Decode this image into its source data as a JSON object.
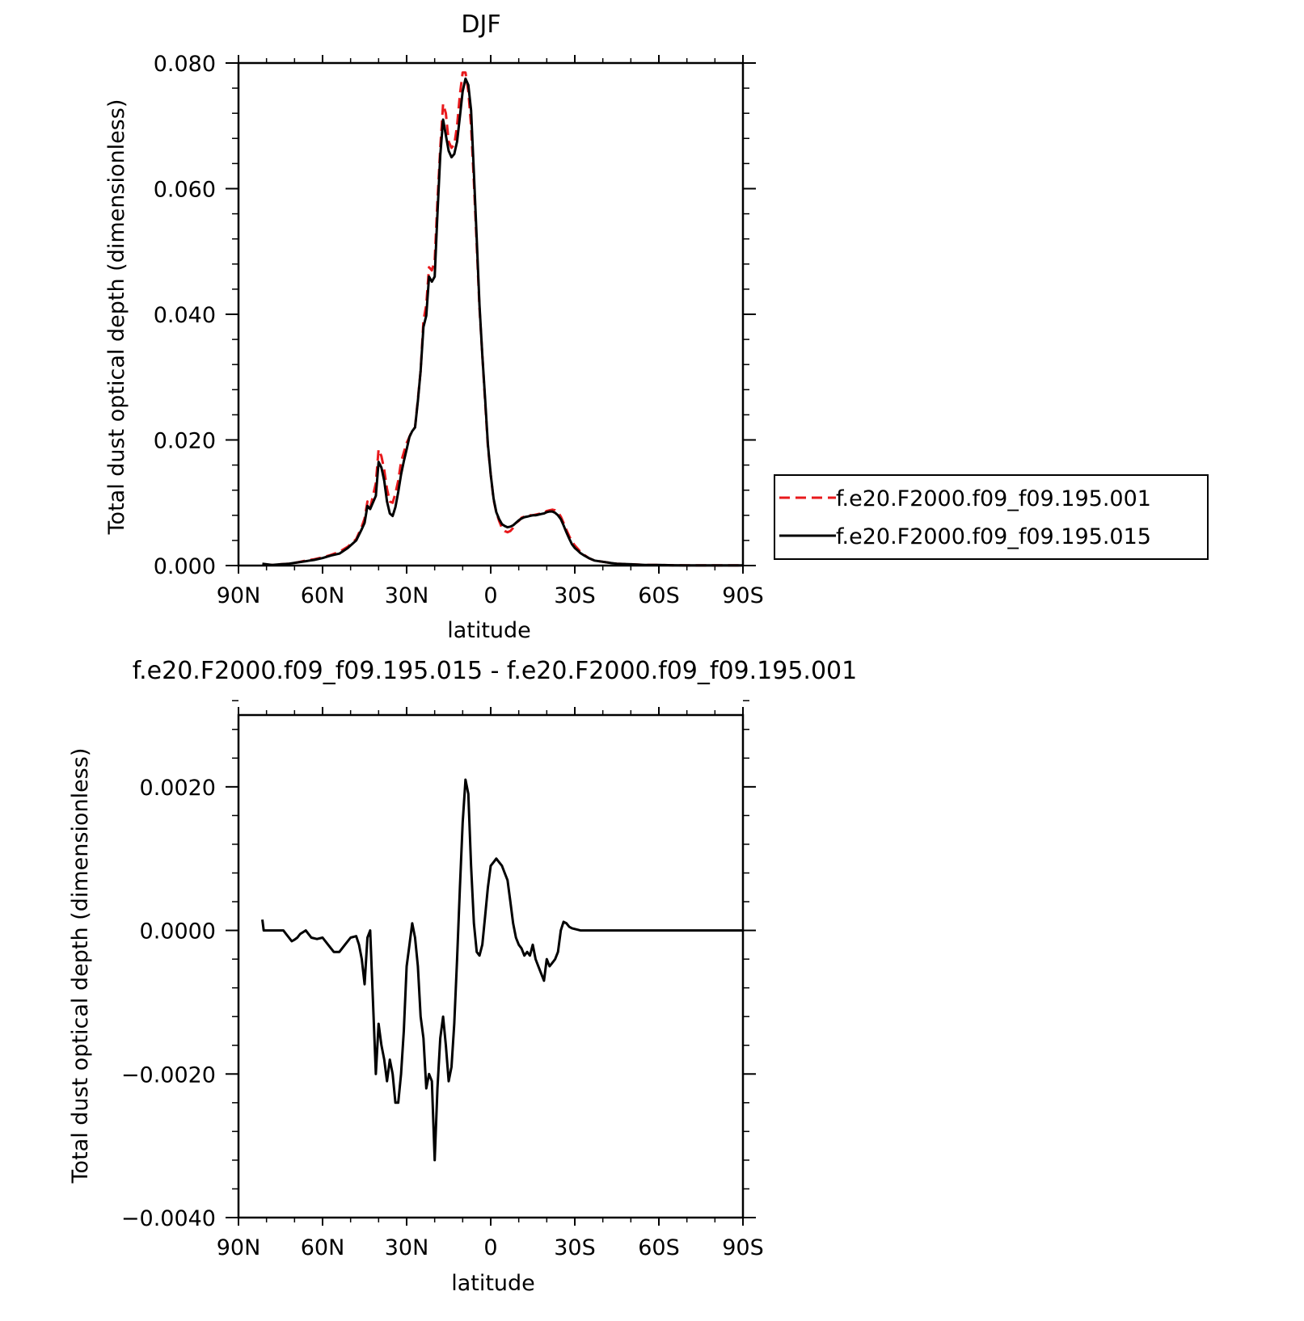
{
  "colors": {
    "series_control": "#e8191c",
    "series_experiment": "#000000",
    "axis": "#000000",
    "background": "#ffffff"
  },
  "chart_data": [
    {
      "type": "line",
      "title": "DJF",
      "xlabel": "latitude",
      "ylabel": "Total dust optical depth (dimensionless)",
      "xlim": [
        -90,
        90
      ],
      "ylim": [
        0,
        0.08
      ],
      "x_direction": "north-to-south",
      "xticks": [
        -90,
        -60,
        -30,
        0,
        30,
        60,
        90
      ],
      "xtick_labels": [
        "90N",
        "60N",
        "30N",
        "0",
        "30S",
        "60S",
        "90S"
      ],
      "yticks": [
        0,
        0.02,
        0.04,
        0.06,
        0.08
      ],
      "ytick_labels": [
        "0.000",
        "0.020",
        "0.040",
        "0.060",
        "0.080"
      ],
      "grid": false,
      "legend_position": "right",
      "series": [
        {
          "name": "f.e20.F2000.f09_f09.195.001",
          "style": "dashed",
          "color": "#e8191c",
          "x": [
            -81.5,
            -78,
            -75,
            -72,
            -69,
            -66,
            -63,
            -60,
            -57,
            -54,
            -51,
            -48,
            -46,
            -45,
            -44,
            -43,
            -41,
            -40,
            -39,
            -38,
            -37,
            -36,
            -35,
            -34,
            -33,
            -32,
            -31,
            -30,
            -29,
            -28,
            -27,
            -26,
            -25,
            -24,
            -23,
            -22,
            -21,
            -20,
            -19,
            -18,
            -17,
            -16,
            -15,
            -14,
            -13,
            -12,
            -11,
            -10,
            -9,
            -8,
            -7,
            -6,
            -5,
            -4,
            -3,
            -2,
            -1,
            0,
            1,
            2,
            3,
            4,
            5,
            6,
            7,
            8,
            9,
            10,
            11,
            12,
            13,
            14,
            15,
            16,
            17,
            18,
            19,
            20,
            21,
            22,
            23,
            24,
            25,
            26,
            27,
            28,
            29,
            30,
            31,
            32,
            33,
            35,
            37,
            40,
            43,
            45,
            50,
            55,
            60,
            65,
            70,
            75,
            80,
            90
          ],
          "y": [
            0.0001,
            0.0001,
            0.0002,
            0.0003,
            0.0005,
            0.0008,
            0.001,
            0.0013,
            0.0017,
            0.0022,
            0.003,
            0.0042,
            0.0062,
            0.0075,
            0.0102,
            0.0092,
            0.0131,
            0.0185,
            0.0174,
            0.0152,
            0.0122,
            0.0102,
            0.01,
            0.0115,
            0.0135,
            0.0165,
            0.018,
            0.0195,
            0.0205,
            0.0215,
            0.022,
            0.0265,
            0.031,
            0.039,
            0.0415,
            0.0475,
            0.047,
            0.0485,
            0.058,
            0.0665,
            0.0735,
            0.072,
            0.0675,
            0.0665,
            0.067,
            0.07,
            0.075,
            0.0785,
            0.0785,
            0.0755,
            0.07,
            0.061,
            0.051,
            0.041,
            0.0335,
            0.026,
            0.019,
            0.0145,
            0.0105,
            0.0085,
            0.0071,
            0.006,
            0.0055,
            0.0053,
            0.0055,
            0.006,
            0.0068,
            0.0071,
            0.0076,
            0.0078,
            0.0079,
            0.008,
            0.008,
            0.0081,
            0.0082,
            0.0083,
            0.0084,
            0.0087,
            0.0088,
            0.0089,
            0.0088,
            0.0085,
            0.0078,
            0.0068,
            0.0057,
            0.0047,
            0.0038,
            0.0032,
            0.0027,
            0.0022,
            0.0018,
            0.0012,
            0.0008,
            0.0006,
            0.0004,
            0.0003,
            0.0002,
            0.0001,
            0.0001,
            5e-05,
            4e-05,
            3e-05,
            3e-05,
            3e-05
          ]
        },
        {
          "name": "f.e20.F2000.f09_f09.195.015",
          "style": "solid",
          "color": "#000000",
          "x": [
            -81.5,
            -78,
            -75,
            -72,
            -69,
            -66,
            -63,
            -60,
            -57,
            -54,
            -51,
            -48,
            -46,
            -45,
            -44,
            -43,
            -41,
            -40,
            -39,
            -38,
            -37,
            -36,
            -35,
            -34,
            -33,
            -32,
            -31,
            -30,
            -29,
            -28,
            -27,
            -26,
            -25,
            -24,
            -23,
            -22,
            -21,
            -20,
            -19,
            -18,
            -17,
            -16,
            -15,
            -14,
            -13,
            -12,
            -11,
            -10,
            -9,
            -8,
            -7,
            -6,
            -5,
            -4,
            -3,
            -2,
            -1,
            0,
            1,
            2,
            3,
            4,
            5,
            6,
            7,
            8,
            9,
            10,
            11,
            12,
            13,
            14,
            15,
            16,
            17,
            18,
            19,
            20,
            21,
            22,
            23,
            24,
            25,
            26,
            27,
            28,
            29,
            30,
            31,
            32,
            33,
            35,
            37,
            40,
            43,
            45,
            50,
            55,
            60,
            65,
            70,
            75,
            80,
            90
          ],
          "y": [
            0.0003,
            0.0001,
            0.0002,
            0.0003,
            0.0005,
            0.0007,
            0.0009,
            0.0012,
            0.0016,
            0.0019,
            0.0028,
            0.004,
            0.0058,
            0.0068,
            0.0095,
            0.009,
            0.0111,
            0.0165,
            0.0156,
            0.0135,
            0.0102,
            0.0083,
            0.0079,
            0.0093,
            0.0117,
            0.0145,
            0.0166,
            0.0185,
            0.0205,
            0.0214,
            0.022,
            0.0262,
            0.031,
            0.038,
            0.0398,
            0.046,
            0.0452,
            0.046,
            0.056,
            0.0653,
            0.071,
            0.0685,
            0.066,
            0.065,
            0.0655,
            0.0675,
            0.0715,
            0.0755,
            0.0775,
            0.0765,
            0.0725,
            0.0625,
            0.052,
            0.0415,
            0.0335,
            0.0265,
            0.0193,
            0.0145,
            0.0107,
            0.0085,
            0.0074,
            0.0066,
            0.0063,
            0.0061,
            0.0062,
            0.0064,
            0.0068,
            0.0072,
            0.0075,
            0.0077,
            0.0078,
            0.0079,
            0.008,
            0.008,
            0.0081,
            0.0082,
            0.0083,
            0.0085,
            0.0086,
            0.0086,
            0.0084,
            0.008,
            0.0074,
            0.0064,
            0.0053,
            0.0043,
            0.0034,
            0.0028,
            0.0024,
            0.002,
            0.0017,
            0.0012,
            0.0008,
            0.0006,
            0.0004,
            0.0003,
            0.0002,
            0.0001,
            0.0001,
            5e-05,
            4e-05,
            3e-05,
            3e-05,
            3e-05
          ]
        }
      ]
    },
    {
      "type": "line",
      "title": "f.e20.F2000.f09_f09.195.015 - f.e20.F2000.f09_f09.195.001",
      "xlabel": "latitude",
      "ylabel": "Total dust optical depth (dimensionless)",
      "xlim": [
        -90,
        90
      ],
      "ylim": [
        -0.004,
        0.003
      ],
      "x_direction": "north-to-south",
      "xticks": [
        -90,
        -60,
        -30,
        0,
        30,
        60,
        90
      ],
      "xtick_labels": [
        "90N",
        "60N",
        "30N",
        "0",
        "30S",
        "60S",
        "90S"
      ],
      "yticks": [
        -0.004,
        -0.002,
        0,
        0.002
      ],
      "ytick_labels": [
        "−0.0040",
        "−0.0020",
        "0.0000",
        "0.0020"
      ],
      "grid": false,
      "series": [
        {
          "style": "solid",
          "color": "#000000",
          "x": [
            -81.5,
            -81,
            -79,
            -77,
            -76,
            -74,
            -73,
            -71,
            -70,
            -69,
            -68,
            -66,
            -64,
            -62,
            -60,
            -58,
            -56,
            -54,
            -52,
            -50,
            -48,
            -47,
            -46,
            -45,
            -44,
            -43,
            -42,
            -41,
            -40,
            -39,
            -38,
            -37,
            -36,
            -35,
            -34,
            -33,
            -32,
            -31,
            -30,
            -29,
            -28,
            -27,
            -26,
            -25,
            -24,
            -23,
            -22,
            -21,
            -20,
            -19,
            -18,
            -17,
            -16,
            -15,
            -14,
            -13,
            -12,
            -11,
            -10,
            -9,
            -8,
            -7,
            -6,
            -5,
            -4,
            -3,
            -2,
            -1,
            0,
            1,
            2,
            3,
            4,
            5,
            6,
            7,
            8,
            9,
            10,
            11,
            12,
            13,
            14,
            15,
            16,
            17,
            18,
            19,
            20,
            21,
            22,
            23,
            24,
            25,
            26,
            27,
            28,
            29,
            30,
            31,
            32,
            33,
            35,
            37,
            38,
            40,
            43,
            45,
            50,
            55,
            60,
            65,
            70,
            75,
            80,
            90
          ],
          "y": [
            0.00015,
            0.0,
            0.0,
            0.0,
            0.0,
            0.0,
            -5e-05,
            -0.00015,
            -0.00013,
            -0.0001,
            -5e-05,
            0.0,
            -0.0001,
            -0.00012,
            -0.0001,
            -0.0002,
            -0.0003,
            -0.0003,
            -0.0002,
            -0.0001,
            -8e-05,
            -0.0002,
            -0.0004,
            -0.00075,
            -0.0001,
            0.0,
            -0.001,
            -0.002,
            -0.0013,
            -0.0016,
            -0.0018,
            -0.0021,
            -0.0018,
            -0.002,
            -0.0024,
            -0.0024,
            -0.002,
            -0.0014,
            -0.0005,
            -0.0002,
            0.0001,
            -0.0001,
            -0.0005,
            -0.0012,
            -0.0015,
            -0.0022,
            -0.002,
            -0.0021,
            -0.0032,
            -0.0022,
            -0.0015,
            -0.0012,
            -0.0016,
            -0.0021,
            -0.0019,
            -0.0013,
            -0.0004,
            0.0006,
            0.0015,
            0.0021,
            0.0019,
            0.0009,
            0.0001,
            -0.0003,
            -0.00035,
            -0.0002,
            0.0002,
            0.0006,
            0.0009,
            0.00095,
            0.001,
            0.00095,
            0.0009,
            0.0008,
            0.0007,
            0.0004,
            0.0001,
            -0.0001,
            -0.0002,
            -0.00025,
            -0.00035,
            -0.0003,
            -0.00035,
            -0.0002,
            -0.0004,
            -0.0005,
            -0.0006,
            -0.0007,
            -0.0004,
            -0.0005,
            -0.00045,
            -0.0004,
            -0.0003,
            0.0,
            0.00012,
            0.0001,
            5e-05,
            3e-05,
            2e-05,
            1e-05,
            0.0,
            0.0,
            0.0,
            0.0,
            0.0,
            0.0,
            0.0,
            0.0,
            0.0,
            0.0,
            0.0,
            0.0,
            0.0,
            0.0,
            0.0,
            0.0
          ]
        }
      ]
    }
  ]
}
